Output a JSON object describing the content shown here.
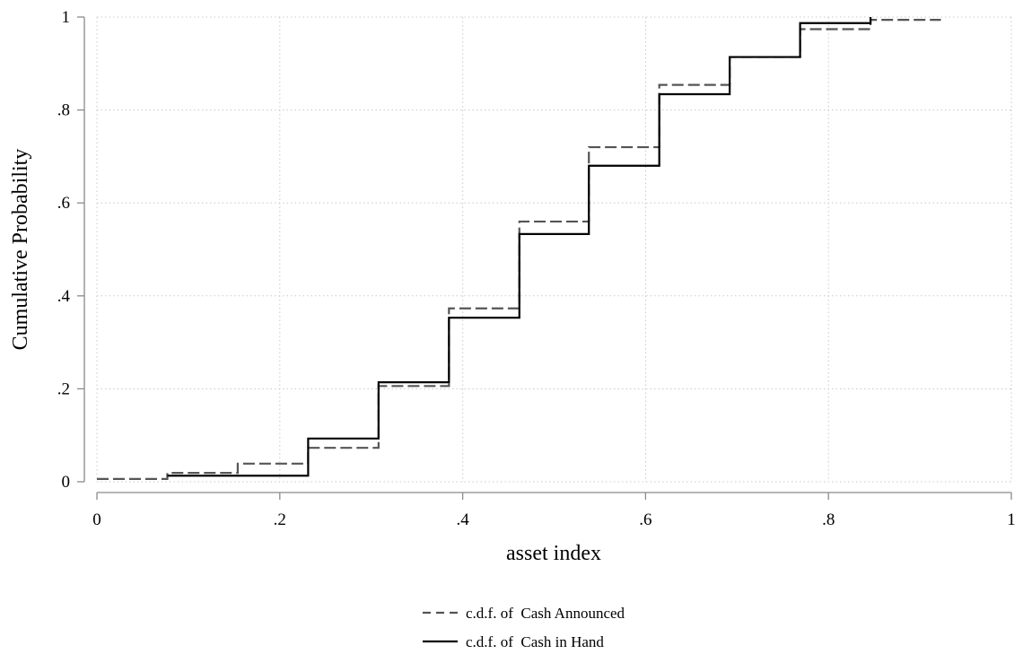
{
  "chart_data": {
    "type": "line",
    "step": true,
    "title": "",
    "xlabel": "asset index",
    "ylabel": "Cumulative Probability",
    "xlim": [
      0,
      1
    ],
    "ylim": [
      0,
      1
    ],
    "x_ticks": [
      0,
      0.2,
      0.4,
      0.6,
      0.8,
      1
    ],
    "x_tick_labels": [
      "0",
      ".2",
      ".4",
      ".6",
      ".8",
      "1"
    ],
    "y_ticks": [
      0,
      0.2,
      0.4,
      0.6,
      0.8,
      1
    ],
    "y_tick_labels": [
      "0",
      ".2",
      ".4",
      ".6",
      ".8",
      "1"
    ],
    "grid": true,
    "legend_position": "bottom",
    "series": [
      {
        "name": "c.d.f. of  Cash Announced",
        "style": "dashed",
        "color": "#555555",
        "x": [
          0,
          0.077,
          0.154,
          0.231,
          0.308,
          0.385,
          0.462,
          0.538,
          0.615,
          0.692,
          0.769,
          0.846,
          0.923
        ],
        "y": [
          0.006,
          0.019,
          0.039,
          0.073,
          0.206,
          0.373,
          0.56,
          0.72,
          0.854,
          0.914,
          0.974,
          0.994,
          0.994
        ]
      },
      {
        "name": "c.d.f. of  Cash in Hand",
        "style": "solid",
        "color": "#000000",
        "x": [
          0.077,
          0.154,
          0.231,
          0.308,
          0.385,
          0.462,
          0.538,
          0.615,
          0.692,
          0.769,
          0.846
        ],
        "y": [
          0.013,
          0.013,
          0.093,
          0.214,
          0.353,
          0.533,
          0.68,
          0.834,
          0.914,
          0.987,
          1.0
        ]
      }
    ]
  }
}
